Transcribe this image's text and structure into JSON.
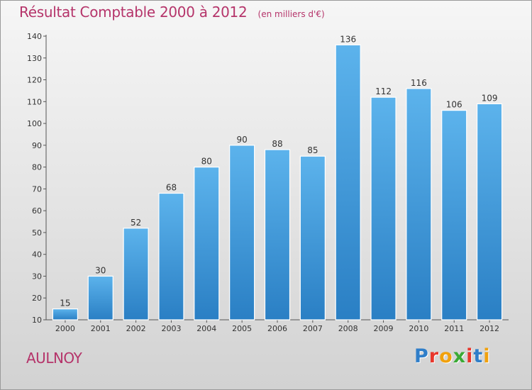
{
  "title": "Résultat Comptable 2000 à 2012",
  "unit": "(en milliers d'€)",
  "city": "AULNOY",
  "brand": {
    "letters": [
      "P",
      "r",
      "o",
      "x",
      "i",
      "t",
      "i"
    ],
    "colors": [
      "#2f7ec9",
      "#e8362b",
      "#f1a10d",
      "#3aaa35",
      "#e8362b",
      "#2f7ec9",
      "#f1a10d"
    ]
  },
  "colors": {
    "bar_top": "#5cb3ec",
    "bar_bottom": "#2a7fc4",
    "title": "#b5346a"
  },
  "chart_data": {
    "type": "bar",
    "title": "Résultat Comptable 2000 à 2012",
    "xlabel": "",
    "ylabel": "",
    "categories": [
      "2000",
      "2001",
      "2002",
      "2003",
      "2004",
      "2005",
      "2006",
      "2007",
      "2008",
      "2009",
      "2010",
      "2011",
      "2012"
    ],
    "values": [
      15,
      30,
      52,
      68,
      80,
      90,
      88,
      85,
      136,
      112,
      116,
      106,
      109
    ],
    "ylim": [
      10,
      140
    ],
    "yticks": [
      10,
      20,
      30,
      40,
      50,
      60,
      70,
      80,
      90,
      100,
      110,
      120,
      130,
      140
    ],
    "grid": false,
    "legend": "none"
  }
}
